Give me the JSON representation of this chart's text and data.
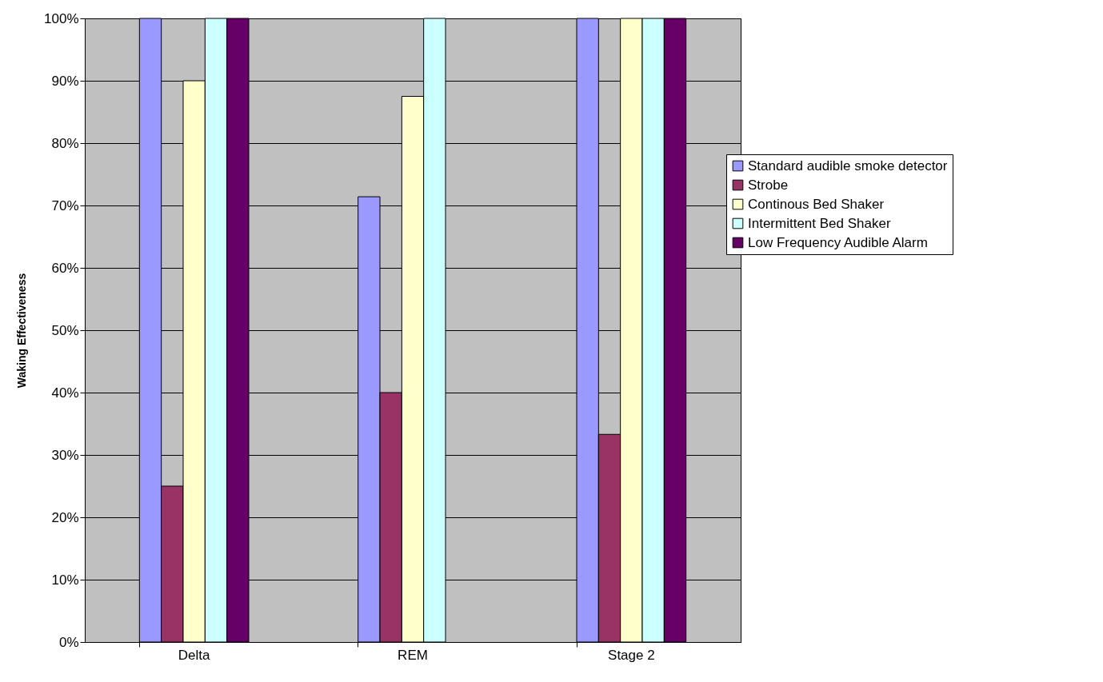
{
  "chart_data": {
    "type": "bar",
    "ylabel": "Waking Effectiveness",
    "categories": [
      "Delta",
      "REM",
      "Stage 2"
    ],
    "series": [
      {
        "name": "Standard audible smoke detector",
        "color": "#9999ff",
        "values": [
          100,
          71.4,
          100
        ]
      },
      {
        "name": "Strobe",
        "color": "#993366",
        "values": [
          25,
          40,
          33.3
        ]
      },
      {
        "name": "Continous Bed Shaker",
        "color": "#ffffcc",
        "values": [
          90,
          87.5,
          100
        ]
      },
      {
        "name": "Intermittent Bed Shaker",
        "color": "#ccffff",
        "values": [
          100,
          100,
          100
        ]
      },
      {
        "name": "Low Frequency Audible Alarm",
        "color": "#660066",
        "values": [
          100,
          null,
          100
        ]
      }
    ],
    "ylim": [
      0,
      100
    ],
    "yticks": [
      {
        "value": 0,
        "label": "0%"
      },
      {
        "value": 10,
        "label": "10%"
      },
      {
        "value": 20,
        "label": "20%"
      },
      {
        "value": 30,
        "label": "30%"
      },
      {
        "value": 40,
        "label": "40%"
      },
      {
        "value": 50,
        "label": "50%"
      },
      {
        "value": 60,
        "label": "60%"
      },
      {
        "value": 70,
        "label": "70%"
      },
      {
        "value": 80,
        "label": "80%"
      },
      {
        "value": 90,
        "label": "90%"
      },
      {
        "value": 100,
        "label": "100%"
      }
    ],
    "grid": "y",
    "legend": "right"
  }
}
